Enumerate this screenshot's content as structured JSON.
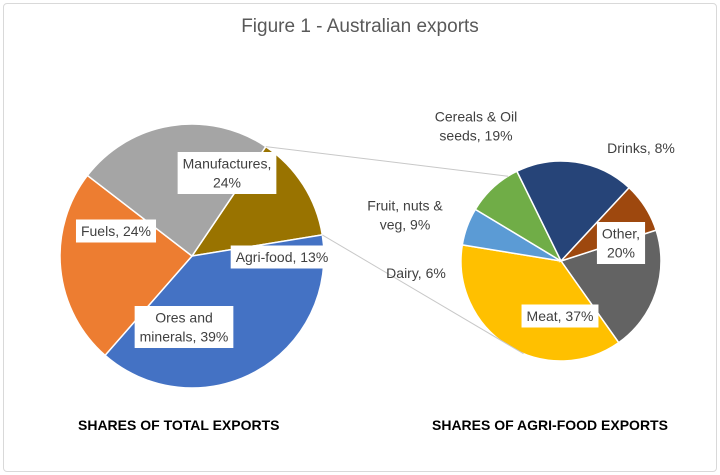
{
  "figure_title": "Figure 1 - Australian exports",
  "colors": {
    "blue": "#4472C4",
    "orange": "#ED7D31",
    "gray": "#A5A5A5",
    "brown": "#997300",
    "navy": "#264478",
    "dark_orange": "#9E480E",
    "dark_gray": "#636363",
    "gold": "#FFC000",
    "light_blue": "#5B9BD5",
    "green": "#70AD47"
  },
  "chart_data": [
    {
      "type": "pie",
      "subtitle": "SHARES OF TOTAL EXPORTS",
      "slices": [
        {
          "key": "agri",
          "label_lines": [
            "Agri-food, 13%"
          ],
          "value": 13,
          "color": "#997300"
        },
        {
          "key": "ores",
          "label_lines": [
            "Ores and",
            "minerals, 39%"
          ],
          "value": 39,
          "color": "#4472C4"
        },
        {
          "key": "fuels",
          "label_lines": [
            "Fuels, 24%"
          ],
          "value": 24,
          "color": "#ED7D31"
        },
        {
          "key": "manufactures",
          "label_lines": [
            "Manufactures,",
            "24%"
          ],
          "value": 24,
          "color": "#A5A5A5"
        }
      ]
    },
    {
      "type": "pie",
      "subtitle": "SHARES OF AGRI-FOOD EXPORTS",
      "slices": [
        {
          "key": "other",
          "label_lines": [
            "Other,",
            "20%"
          ],
          "value": 20,
          "color": "#636363"
        },
        {
          "key": "meat",
          "label_lines": [
            "Meat, 37%"
          ],
          "value": 37,
          "color": "#FFC000"
        },
        {
          "key": "dairy",
          "label_lines": [
            "Dairy, 6%"
          ],
          "value": 6,
          "color": "#5B9BD5"
        },
        {
          "key": "fruit",
          "label_lines": [
            "Fruit, nuts &",
            "veg, 9%"
          ],
          "value": 9,
          "color": "#70AD47"
        },
        {
          "key": "cereals",
          "label_lines": [
            "Cereals & Oil",
            "seeds, 19%"
          ],
          "value": 19,
          "color": "#264478"
        },
        {
          "key": "drinks",
          "label_lines": [
            "Drinks, 8%"
          ],
          "value": 8,
          "color": "#9E480E"
        }
      ]
    }
  ]
}
